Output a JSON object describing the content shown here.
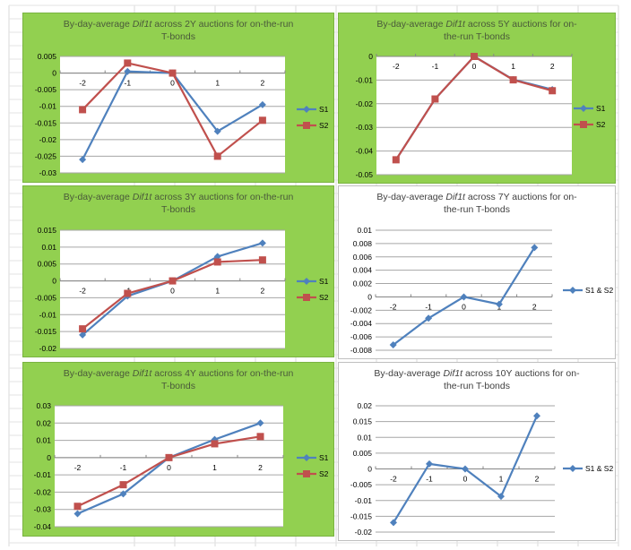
{
  "colors": {
    "s1": "#4f81bd",
    "s2": "#c0504d",
    "green_bg": "#92d050",
    "grid": "#a6a6a6"
  },
  "chart_data": [
    {
      "id": "2y",
      "type": "line",
      "title_pre": "By-day-average ",
      "title_em": "Dif1t",
      "title_post": " across 2Y auctions for on-the-run T-bonds",
      "title_lines": [
        "By-day-average |Dif1t| across 2Y auctions for on-the-run",
        "T-bonds"
      ],
      "background": "green",
      "xlabel": "",
      "ylabel": "",
      "categories": [
        "-2",
        "-1",
        "0",
        "1",
        "2"
      ],
      "ylim": [
        -0.03,
        0.005
      ],
      "yticks": [
        0.005,
        0,
        -0.005,
        -0.01,
        -0.015,
        -0.02,
        -0.025,
        -0.03
      ],
      "ytick_labels": [
        "0.005",
        "0",
        "-0.005",
        "-0.01",
        "-0.015",
        "-0.02",
        "-0.025",
        "-0.03"
      ],
      "grid": true,
      "legend": "right",
      "series": [
        {
          "name": "S1",
          "marker": "diamond",
          "values": [
            -0.026,
            0.0005,
            0.0,
            -0.0175,
            -0.0095
          ]
        },
        {
          "name": "S2",
          "marker": "square",
          "values": [
            -0.011,
            0.003,
            0.0,
            -0.025,
            -0.0142
          ]
        }
      ]
    },
    {
      "id": "5y",
      "type": "line",
      "title_lines": [
        "By-day-average |Dif1t| across 5Y auctions for on-",
        "the-run T-bonds"
      ],
      "background": "green",
      "xlabel": "",
      "ylabel": "",
      "categories": [
        "-2",
        "-1",
        "0",
        "1",
        "2"
      ],
      "ylim": [
        -0.05,
        0
      ],
      "yticks": [
        0,
        -0.01,
        -0.02,
        -0.03,
        -0.04,
        -0.05
      ],
      "ytick_labels": [
        "0",
        "-0.01",
        "-0.02",
        "-0.03",
        "-0.04",
        "-0.05"
      ],
      "grid": true,
      "legend": "right",
      "series": [
        {
          "name": "S1",
          "marker": "diamond",
          "values": [
            -0.0437,
            -0.018,
            0.0,
            -0.0098,
            -0.014
          ]
        },
        {
          "name": "S2",
          "marker": "square",
          "values": [
            -0.0437,
            -0.018,
            0.0,
            -0.0099,
            -0.0145
          ]
        }
      ]
    },
    {
      "id": "3y",
      "type": "line",
      "title_lines": [
        "By-day-average |Dif1t| across 3Y auctions for on-the-run",
        "T-bonds"
      ],
      "background": "green",
      "xlabel": "",
      "ylabel": "",
      "categories": [
        "-2",
        "-1",
        "0",
        "1",
        "2"
      ],
      "ylim": [
        -0.02,
        0.015
      ],
      "yticks": [
        0.015,
        0.01,
        0.005,
        0,
        -0.005,
        -0.01,
        -0.015,
        -0.02
      ],
      "ytick_labels": [
        "0.015",
        "0.01",
        "0.005",
        "0",
        "-0.005",
        "-0.01",
        "-0.015",
        "-0.02"
      ],
      "grid": true,
      "legend": "right",
      "series": [
        {
          "name": "S1",
          "marker": "diamond",
          "values": [
            -0.016,
            -0.0045,
            0.0,
            0.0072,
            0.0112
          ]
        },
        {
          "name": "S2",
          "marker": "square",
          "values": [
            -0.0142,
            -0.0037,
            0.0,
            0.0056,
            0.0062
          ]
        }
      ]
    },
    {
      "id": "7y",
      "type": "line",
      "title_lines": [
        "By-day-average |Dif1t| across 7Y auctions for on-",
        "the-run T-bonds"
      ],
      "background": "white",
      "xlabel": "",
      "ylabel": "",
      "categories": [
        "-2",
        "-1",
        "0",
        "1",
        "2"
      ],
      "ylim": [
        -0.008,
        0.01
      ],
      "yticks": [
        0.01,
        0.008,
        0.006,
        0.004,
        0.002,
        0,
        -0.002,
        -0.004,
        -0.006,
        -0.008
      ],
      "ytick_labels": [
        "0.01",
        "0.008",
        "0.006",
        "0.004",
        "0.002",
        "0",
        "-0.002",
        "-0.004",
        "-0.006",
        "-0.008"
      ],
      "grid": true,
      "legend": "right",
      "series": [
        {
          "name": "S1 & S2",
          "marker": "diamond",
          "values": [
            -0.0072,
            -0.0032,
            0.0,
            -0.0011,
            0.0074
          ]
        }
      ]
    },
    {
      "id": "4y",
      "type": "line",
      "title_lines": [
        "By-day-average |Dif1t| across 4Y auctions for on-the-run",
        "T-bonds"
      ],
      "background": "green",
      "xlabel": "",
      "ylabel": "",
      "categories": [
        "-2",
        "-1",
        "0",
        "1",
        "2"
      ],
      "ylim": [
        -0.04,
        0.03
      ],
      "yticks": [
        0.03,
        0.02,
        0.01,
        0,
        -0.01,
        -0.02,
        -0.03,
        -0.04
      ],
      "ytick_labels": [
        "0.03",
        "0.02",
        "0.01",
        "0",
        "-0.01",
        "-0.02",
        "-0.03",
        "-0.04"
      ],
      "grid": true,
      "legend": "right",
      "series": [
        {
          "name": "S1",
          "marker": "diamond",
          "values": [
            -0.0325,
            -0.021,
            0.0,
            0.0105,
            0.02
          ]
        },
        {
          "name": "S2",
          "marker": "square",
          "values": [
            -0.0282,
            -0.0157,
            0.0,
            0.008,
            0.0122
          ]
        }
      ]
    },
    {
      "id": "10y",
      "type": "line",
      "title_lines": [
        "By-day-average |Dif1t| across 10Y auctions for on-",
        "the-run T-bonds"
      ],
      "background": "white",
      "xlabel": "",
      "ylabel": "",
      "categories": [
        "-2",
        "-1",
        "0",
        "1",
        "2"
      ],
      "ylim": [
        -0.02,
        0.02
      ],
      "yticks": [
        0.02,
        0.015,
        0.01,
        0.005,
        0,
        -0.005,
        -0.01,
        -0.015,
        -0.02
      ],
      "ytick_labels": [
        "0.02",
        "0.015",
        "0.01",
        "0.005",
        "0",
        "-0.005",
        "-0.01",
        "-0.015",
        "-0.02"
      ],
      "grid": true,
      "legend": "right",
      "series": [
        {
          "name": "S1 & S2",
          "marker": "diamond",
          "values": [
            -0.017,
            0.0016,
            0.0,
            -0.0087,
            0.0168
          ]
        }
      ]
    }
  ]
}
